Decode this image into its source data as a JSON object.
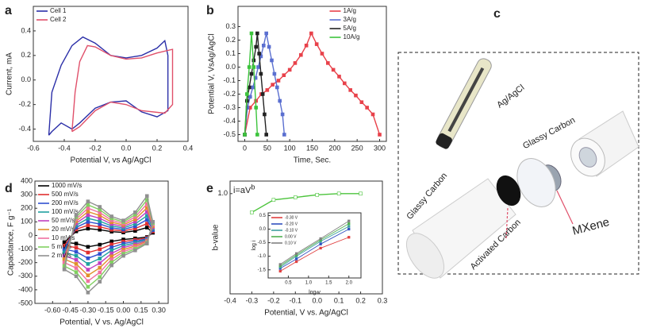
{
  "chart_data": [
    {
      "type": "line",
      "panel_label": "a",
      "xlabel": "Potential V, vs Ag/AgCl",
      "ylabel": "Current, mA",
      "xlim": [
        -0.6,
        0.4
      ],
      "xticks": [
        -0.6,
        -0.4,
        -0.2,
        {
          "value": 0,
          "label": "0.0"
        },
        0.2,
        0.4
      ],
      "ylim": [
        -0.5,
        0.6
      ],
      "yticks": [
        -0.4,
        -0.2,
        {
          "value": 0,
          "label": "0.0"
        },
        0.2,
        0.4
      ],
      "grid": false,
      "legend": "upper left",
      "markers": false,
      "series": [
        {
          "name": "Cell 1",
          "color": "#2b2fa8",
          "x": [
            -0.5,
            -0.48,
            -0.42,
            -0.35,
            -0.28,
            -0.2,
            -0.1,
            0,
            0.1,
            0.2,
            0.25,
            0.27,
            0.27,
            0.2,
            0.1,
            0,
            -0.1,
            -0.2,
            -0.3,
            -0.35,
            -0.42,
            -0.48,
            -0.5
          ],
          "values": [
            -0.45,
            -0.1,
            0.12,
            0.28,
            0.35,
            0.3,
            0.2,
            0.18,
            0.2,
            0.26,
            0.32,
            0.2,
            -0.25,
            -0.3,
            -0.26,
            -0.17,
            -0.18,
            -0.23,
            -0.35,
            -0.4,
            -0.35,
            -0.42,
            -0.45
          ]
        },
        {
          "name": "Cell 2",
          "color": "#e0506a",
          "x": [
            -0.35,
            -0.33,
            -0.3,
            -0.25,
            -0.2,
            -0.1,
            0,
            0.1,
            0.2,
            0.3,
            0.3,
            0.25,
            0.1,
            0,
            -0.1,
            -0.2,
            -0.3,
            -0.35
          ],
          "values": [
            -0.42,
            -0.1,
            0.15,
            0.28,
            0.27,
            0.2,
            0.17,
            0.18,
            0.22,
            0.25,
            -0.2,
            -0.27,
            -0.25,
            -0.2,
            -0.18,
            -0.25,
            -0.38,
            -0.42
          ]
        }
      ]
    },
    {
      "type": "line",
      "panel_label": "b",
      "xlabel": "Time, Sec.",
      "ylabel": "Potential V, VsAg/AgCl",
      "xlim": [
        -15,
        315
      ],
      "xticks": [
        0,
        50,
        100,
        150,
        200,
        250,
        300
      ],
      "ylim": [
        -0.55,
        0.45
      ],
      "yticks": [
        -0.5,
        -0.4,
        -0.3,
        -0.2,
        -0.1,
        {
          "value": 0,
          "label": "0.0"
        },
        0.1,
        0.2,
        0.3
      ],
      "grid": false,
      "legend": "upper right",
      "markers": true,
      "series": [
        {
          "name": "1A/g",
          "color": "#e8414a",
          "x": [
            0,
            12,
            25,
            37,
            50,
            62,
            75,
            87,
            100,
            112,
            125,
            137,
            148,
            160,
            172,
            185,
            197,
            210,
            222,
            235,
            247,
            260,
            272,
            285,
            300
          ],
          "values": [
            -0.5,
            -0.3,
            -0.25,
            -0.2,
            -0.17,
            -0.13,
            -0.1,
            -0.06,
            -0.02,
            0.03,
            0.09,
            0.16,
            0.25,
            0.17,
            0.1,
            0.03,
            -0.02,
            -0.07,
            -0.12,
            -0.17,
            -0.21,
            -0.26,
            -0.3,
            -0.35,
            -0.5
          ]
        },
        {
          "name": "3A/g",
          "color": "#5a6fd0",
          "x": [
            0,
            6,
            12,
            18,
            24,
            30,
            36,
            42,
            48,
            54,
            60,
            66,
            72,
            78,
            84,
            88
          ],
          "values": [
            -0.5,
            -0.3,
            -0.22,
            -0.15,
            -0.08,
            0,
            0.08,
            0.16,
            0.25,
            0.15,
            0.05,
            -0.05,
            -0.15,
            -0.25,
            -0.35,
            -0.5
          ]
        },
        {
          "name": "5A/g",
          "color": "#222222",
          "x": [
            0,
            5,
            10,
            15,
            20,
            25,
            28,
            32,
            36,
            40,
            44,
            48
          ],
          "values": [
            -0.5,
            -0.25,
            -0.15,
            -0.05,
            0.05,
            0.15,
            0.25,
            0.1,
            -0.05,
            -0.2,
            -0.35,
            -0.5
          ]
        },
        {
          "name": "10A/g",
          "color": "#3cc43c",
          "x": [
            0,
            5,
            10,
            15,
            20,
            25,
            28
          ],
          "values": [
            -0.5,
            -0.2,
            0,
            0.25,
            0,
            -0.3,
            -0.5
          ]
        }
      ]
    },
    {
      "type": "line",
      "panel_label": "d",
      "xlabel": "Potential, V vs. Ag/AgCl",
      "ylabel": "Capacitance, F g⁻¹",
      "xlim": [
        -0.75,
        0.38
      ],
      "xticks": [
        {
          "value": -0.6,
          "label": "-0.60"
        },
        {
          "value": -0.45,
          "label": "-0.45"
        },
        {
          "value": -0.3,
          "label": "-0.30"
        },
        {
          "value": -0.15,
          "label": "-0.15"
        },
        {
          "value": 0,
          "label": "0.00"
        },
        {
          "value": 0.15,
          "label": "0.15"
        },
        {
          "value": 0.3,
          "label": "0.30"
        }
      ],
      "ylim": [
        -500,
        400
      ],
      "yticks": [
        -500,
        -400,
        -300,
        -200,
        -100,
        0,
        100,
        200,
        300,
        400
      ],
      "grid": false,
      "legend": "upper left",
      "markers": true,
      "x": [
        -0.5,
        -0.4,
        -0.3,
        -0.2,
        -0.1,
        0,
        0.1,
        0.2,
        0.25,
        0.2,
        0.1,
        0,
        -0.1,
        -0.2,
        -0.3,
        -0.4,
        -0.5
      ],
      "series": [
        {
          "name": "1000 mV/s",
          "color": "#000000",
          "values": [
            -50,
            30,
            50,
            42,
            28,
            22,
            34,
            58,
            20,
            -12,
            -22,
            -30,
            -44,
            -68,
            -84,
            -60,
            -50
          ]
        },
        {
          "name": "500 mV/s",
          "color": "#e03030",
          "values": [
            -75,
            45,
            75,
            63,
            42,
            33,
            51,
            87,
            30,
            -18,
            -33,
            -45,
            -66,
            -102,
            -126,
            -90,
            -75
          ]
        },
        {
          "name": "200 mV/s",
          "color": "#3050d0",
          "values": [
            -100,
            60,
            100,
            84,
            56,
            44,
            68,
            116,
            40,
            -24,
            -44,
            -60,
            -88,
            -136,
            -168,
            -120,
            -100
          ]
        },
        {
          "name": "100 mV/s",
          "color": "#1fa0a0",
          "values": [
            -125,
            75,
            125,
            105,
            70,
            55,
            85,
            145,
            50,
            -30,
            -55,
            -75,
            -110,
            -170,
            -210,
            -150,
            -125
          ]
        },
        {
          "name": "50 mV/s",
          "color": "#c040c0",
          "values": [
            -150,
            90,
            150,
            126,
            84,
            66,
            102,
            174,
            60,
            -36,
            -66,
            -90,
            -132,
            -204,
            -252,
            -180,
            -150
          ]
        },
        {
          "name": "20 mV/s",
          "color": "#e0902a",
          "values": [
            -175,
            105,
            175,
            147,
            98,
            77,
            119,
            203,
            70,
            -42,
            -77,
            -105,
            -154,
            -238,
            -294,
            -210,
            -175
          ]
        },
        {
          "name": "10 mV/s",
          "color": "#f070a0",
          "values": [
            -200,
            120,
            200,
            168,
            112,
            88,
            136,
            232,
            80,
            -48,
            -88,
            -120,
            -176,
            -272,
            -336,
            -240,
            -200
          ]
        },
        {
          "name": "5 mV/s",
          "color": "#80d060",
          "values": [
            -225,
            135,
            225,
            189,
            126,
            99,
            153,
            261,
            90,
            -54,
            -99,
            -135,
            -198,
            -306,
            -378,
            -270,
            -225
          ]
        },
        {
          "name": "2 mV/s",
          "color": "#909090",
          "values": [
            -250,
            150,
            250,
            210,
            140,
            110,
            170,
            290,
            100,
            -60,
            -110,
            -150,
            -220,
            -340,
            -420,
            -300,
            -250
          ]
        }
      ]
    },
    {
      "type": "line",
      "panel_label": "e",
      "xlabel": "Potential, V vs. Ag/AgCl",
      "ylabel": "b-value",
      "annotation": {
        "text": "i=aV",
        "sup": "b"
      },
      "xlim": [
        -0.4,
        0.3
      ],
      "xticks": [
        -0.4,
        -0.3,
        -0.2,
        -0.1,
        {
          "value": 0,
          "label": "0.0"
        },
        0.1,
        0.2,
        0.3
      ],
      "ylim": [
        0.2,
        1.1
      ],
      "yticks": [
        {
          "value": 1,
          "label": "1.0"
        }
      ],
      "grid": false,
      "markers": true,
      "x": [
        -0.3,
        -0.2,
        -0.1,
        0,
        0.1,
        0.2
      ],
      "values": [
        0.85,
        0.95,
        0.97,
        0.99,
        1.0,
        1.0
      ],
      "color": "#4cc43c"
    },
    {
      "type": "line",
      "xlabel": "log v",
      "ylabel": "log i",
      "xlim": [
        0,
        2.3
      ],
      "xticks": [
        0.5,
        {
          "value": 1,
          "label": "1.0"
        },
        1.5,
        {
          "value": 2,
          "label": "2.0"
        }
      ],
      "ylim": [
        -1.8,
        0.6
      ],
      "yticks": [
        -1.5,
        {
          "value": -1,
          "label": "-1.0"
        },
        -0.5,
        {
          "value": 0,
          "label": "0.0"
        },
        0.5
      ],
      "grid": false,
      "legend": "upper left",
      "markers": true,
      "x": [
        0.3,
        0.7,
        1.3,
        2.0
      ],
      "series": [
        {
          "name": "-0.30 V",
          "color": "#e04040",
          "values": [
            -1.55,
            -1.2,
            -0.7,
            -0.3
          ]
        },
        {
          "name": "-0.20 V",
          "color": "#3050c0",
          "values": [
            -1.45,
            -1.1,
            -0.55,
            0.0
          ]
        },
        {
          "name": "-0.10 V",
          "color": "#40a0a0",
          "values": [
            -1.4,
            -1.0,
            -0.45,
            0.1
          ]
        },
        {
          "name": "0.00 V",
          "color": "#50b050",
          "values": [
            -1.35,
            -0.95,
            -0.4,
            0.2
          ]
        },
        {
          "name": "0.10 V",
          "color": "#808080",
          "values": [
            -1.3,
            -0.9,
            -0.35,
            0.3
          ]
        }
      ]
    }
  ],
  "illustration": {
    "panel_label": "c",
    "electrode": "Ag/AgCl",
    "glassy_carbon_top": "Glassy Carbon",
    "glassy_carbon_left": "Glassy Carbon",
    "mxene": "MXene",
    "activated_carbon": "Activated Carbon"
  }
}
